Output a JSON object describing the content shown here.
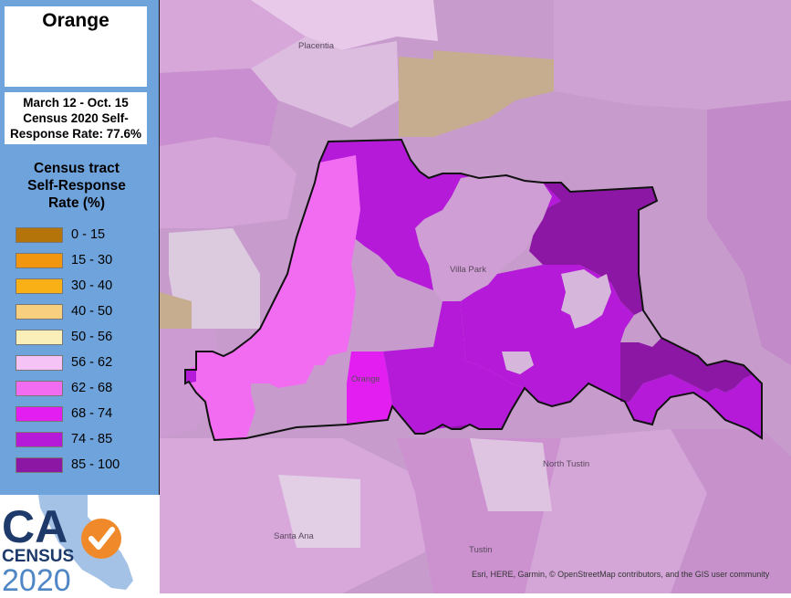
{
  "panel": {
    "city": "Orange",
    "rate_lines": [
      "March 12 - Oct. 15",
      "Census 2020 Self-",
      "Response Rate: 77.6%"
    ]
  },
  "legend": {
    "title_lines": [
      "Census tract",
      "Self-Response",
      "Rate (%)"
    ],
    "items": [
      {
        "label": "0 - 15",
        "color": "#b5740a"
      },
      {
        "label": "15 - 30",
        "color": "#f2960f"
      },
      {
        "label": "30 - 40",
        "color": "#f9b017"
      },
      {
        "label": "40 - 50",
        "color": "#f7cf7f"
      },
      {
        "label": "50 - 56",
        "color": "#fbefb9"
      },
      {
        "label": "56 - 62",
        "color": "#f5c3f5"
      },
      {
        "label": "62 - 68",
        "color": "#f26cf2"
      },
      {
        "label": "68 - 74",
        "color": "#e21ff0"
      },
      {
        "label": "74 - 85",
        "color": "#b41ad8"
      },
      {
        "label": "85 - 100",
        "color": "#8c17a4"
      }
    ]
  },
  "logo": {
    "ca": "CA",
    "census": "CENSUS",
    "year": "2020"
  },
  "map": {
    "places": {
      "placentia": "Placentia",
      "villa_park": "Villa Park",
      "orange": "Orange",
      "north_tustin": "North Tustin",
      "santa_ana": "Santa Ana",
      "tustin": "Tustin"
    },
    "attribution": "Esri, HERE, Garmin, © OpenStreetMap contributors, and the GIS user community"
  }
}
